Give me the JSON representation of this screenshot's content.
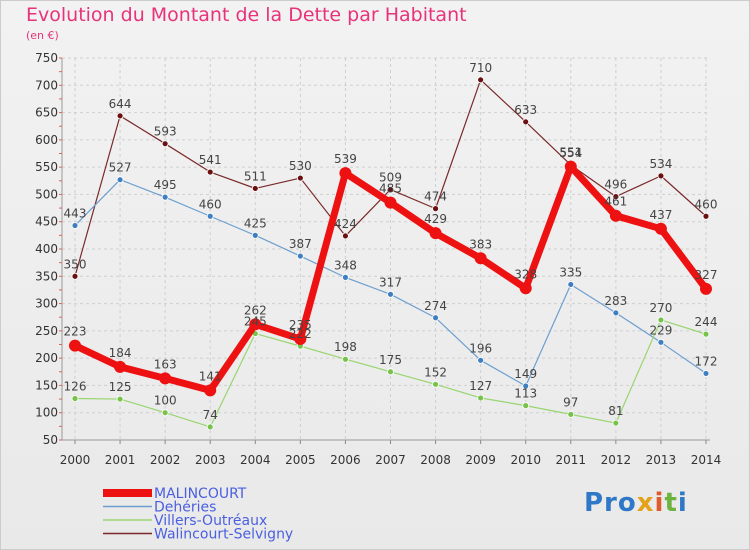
{
  "title": "Evolution du Montant de la Dette par Habitant",
  "subtitle": "(en €)",
  "logo": {
    "text": "Proxiti",
    "parts": [
      "Pro",
      "x",
      "i",
      "t",
      "i"
    ]
  },
  "chart_data": {
    "type": "line",
    "x": [
      "2000",
      "2001",
      "2002",
      "2003",
      "2004",
      "2005",
      "2006",
      "2007",
      "2008",
      "2009",
      "2010",
      "2011",
      "2012",
      "2013",
      "2014"
    ],
    "ylim": [
      50,
      750
    ],
    "yticks": [
      50,
      100,
      150,
      200,
      250,
      300,
      350,
      400,
      450,
      500,
      550,
      600,
      650,
      700,
      750
    ],
    "grid": true,
    "legend_position": "bottom-left",
    "series": [
      {
        "name": "Walincourt-Selvigny",
        "color": "#7a2a2a",
        "point_color": "#6a1010",
        "width": 1.2,
        "radius": 3,
        "values": [
          350,
          644,
          593,
          541,
          511,
          530,
          424,
          509,
          474,
          710,
          633,
          554,
          496,
          534,
          460
        ],
        "labels": [
          "350",
          "644",
          "593",
          "541",
          "511",
          "530",
          "424",
          "509",
          "474",
          "710",
          "633",
          "554",
          "496",
          "534",
          "460"
        ]
      },
      {
        "name": "Dehéries",
        "color": "#6c9fd0",
        "point_color": "#3f7fc0",
        "width": 1.2,
        "radius": 3,
        "values": [
          443,
          527,
          495,
          460,
          425,
          387,
          348,
          317,
          274,
          196,
          149,
          335,
          283,
          229,
          172
        ],
        "labels": [
          "443",
          "527",
          "495",
          "460",
          "425",
          "387",
          "348",
          "317",
          "274",
          "196",
          "149",
          "335",
          "283",
          "229",
          "172"
        ]
      },
      {
        "name": "Villers-Outréaux",
        "color": "#99d570",
        "point_color": "#77c24a",
        "width": 1.2,
        "radius": 3,
        "values": [
          126,
          125,
          100,
          74,
          245,
          222,
          198,
          175,
          152,
          127,
          113,
          97,
          81,
          270,
          244
        ],
        "labels": [
          "126",
          "125",
          "100",
          "74",
          "245",
          "222",
          "198",
          "175",
          "152",
          "127",
          "113",
          "97",
          "81",
          "270",
          "244"
        ]
      },
      {
        "name": "MALINCOURT",
        "color": "#ee1111",
        "point_color": "#ee1111",
        "width": 7,
        "radius": 6,
        "values": [
          223,
          184,
          163,
          141,
          262,
          235,
          539,
          485,
          429,
          383,
          328,
          551,
          461,
          437,
          327
        ],
        "labels": [
          "223",
          "184",
          "163",
          "141",
          "262",
          "235",
          "539",
          "485",
          "429",
          "383",
          "328",
          "551",
          "461",
          "437",
          "327"
        ]
      }
    ],
    "legend": [
      {
        "name": "MALINCOURT",
        "color": "#ee1111",
        "text_color": "#4a5fe0"
      },
      {
        "name": "Dehéries",
        "color": "#6c9fd0",
        "text_color": "#4a5fe0"
      },
      {
        "name": "Villers-Outréaux",
        "color": "#99d570",
        "text_color": "#4a5fe0"
      },
      {
        "name": "Walincourt-Selvigny",
        "color": "#7a2a2a",
        "text_color": "#4a5fe0"
      }
    ]
  }
}
